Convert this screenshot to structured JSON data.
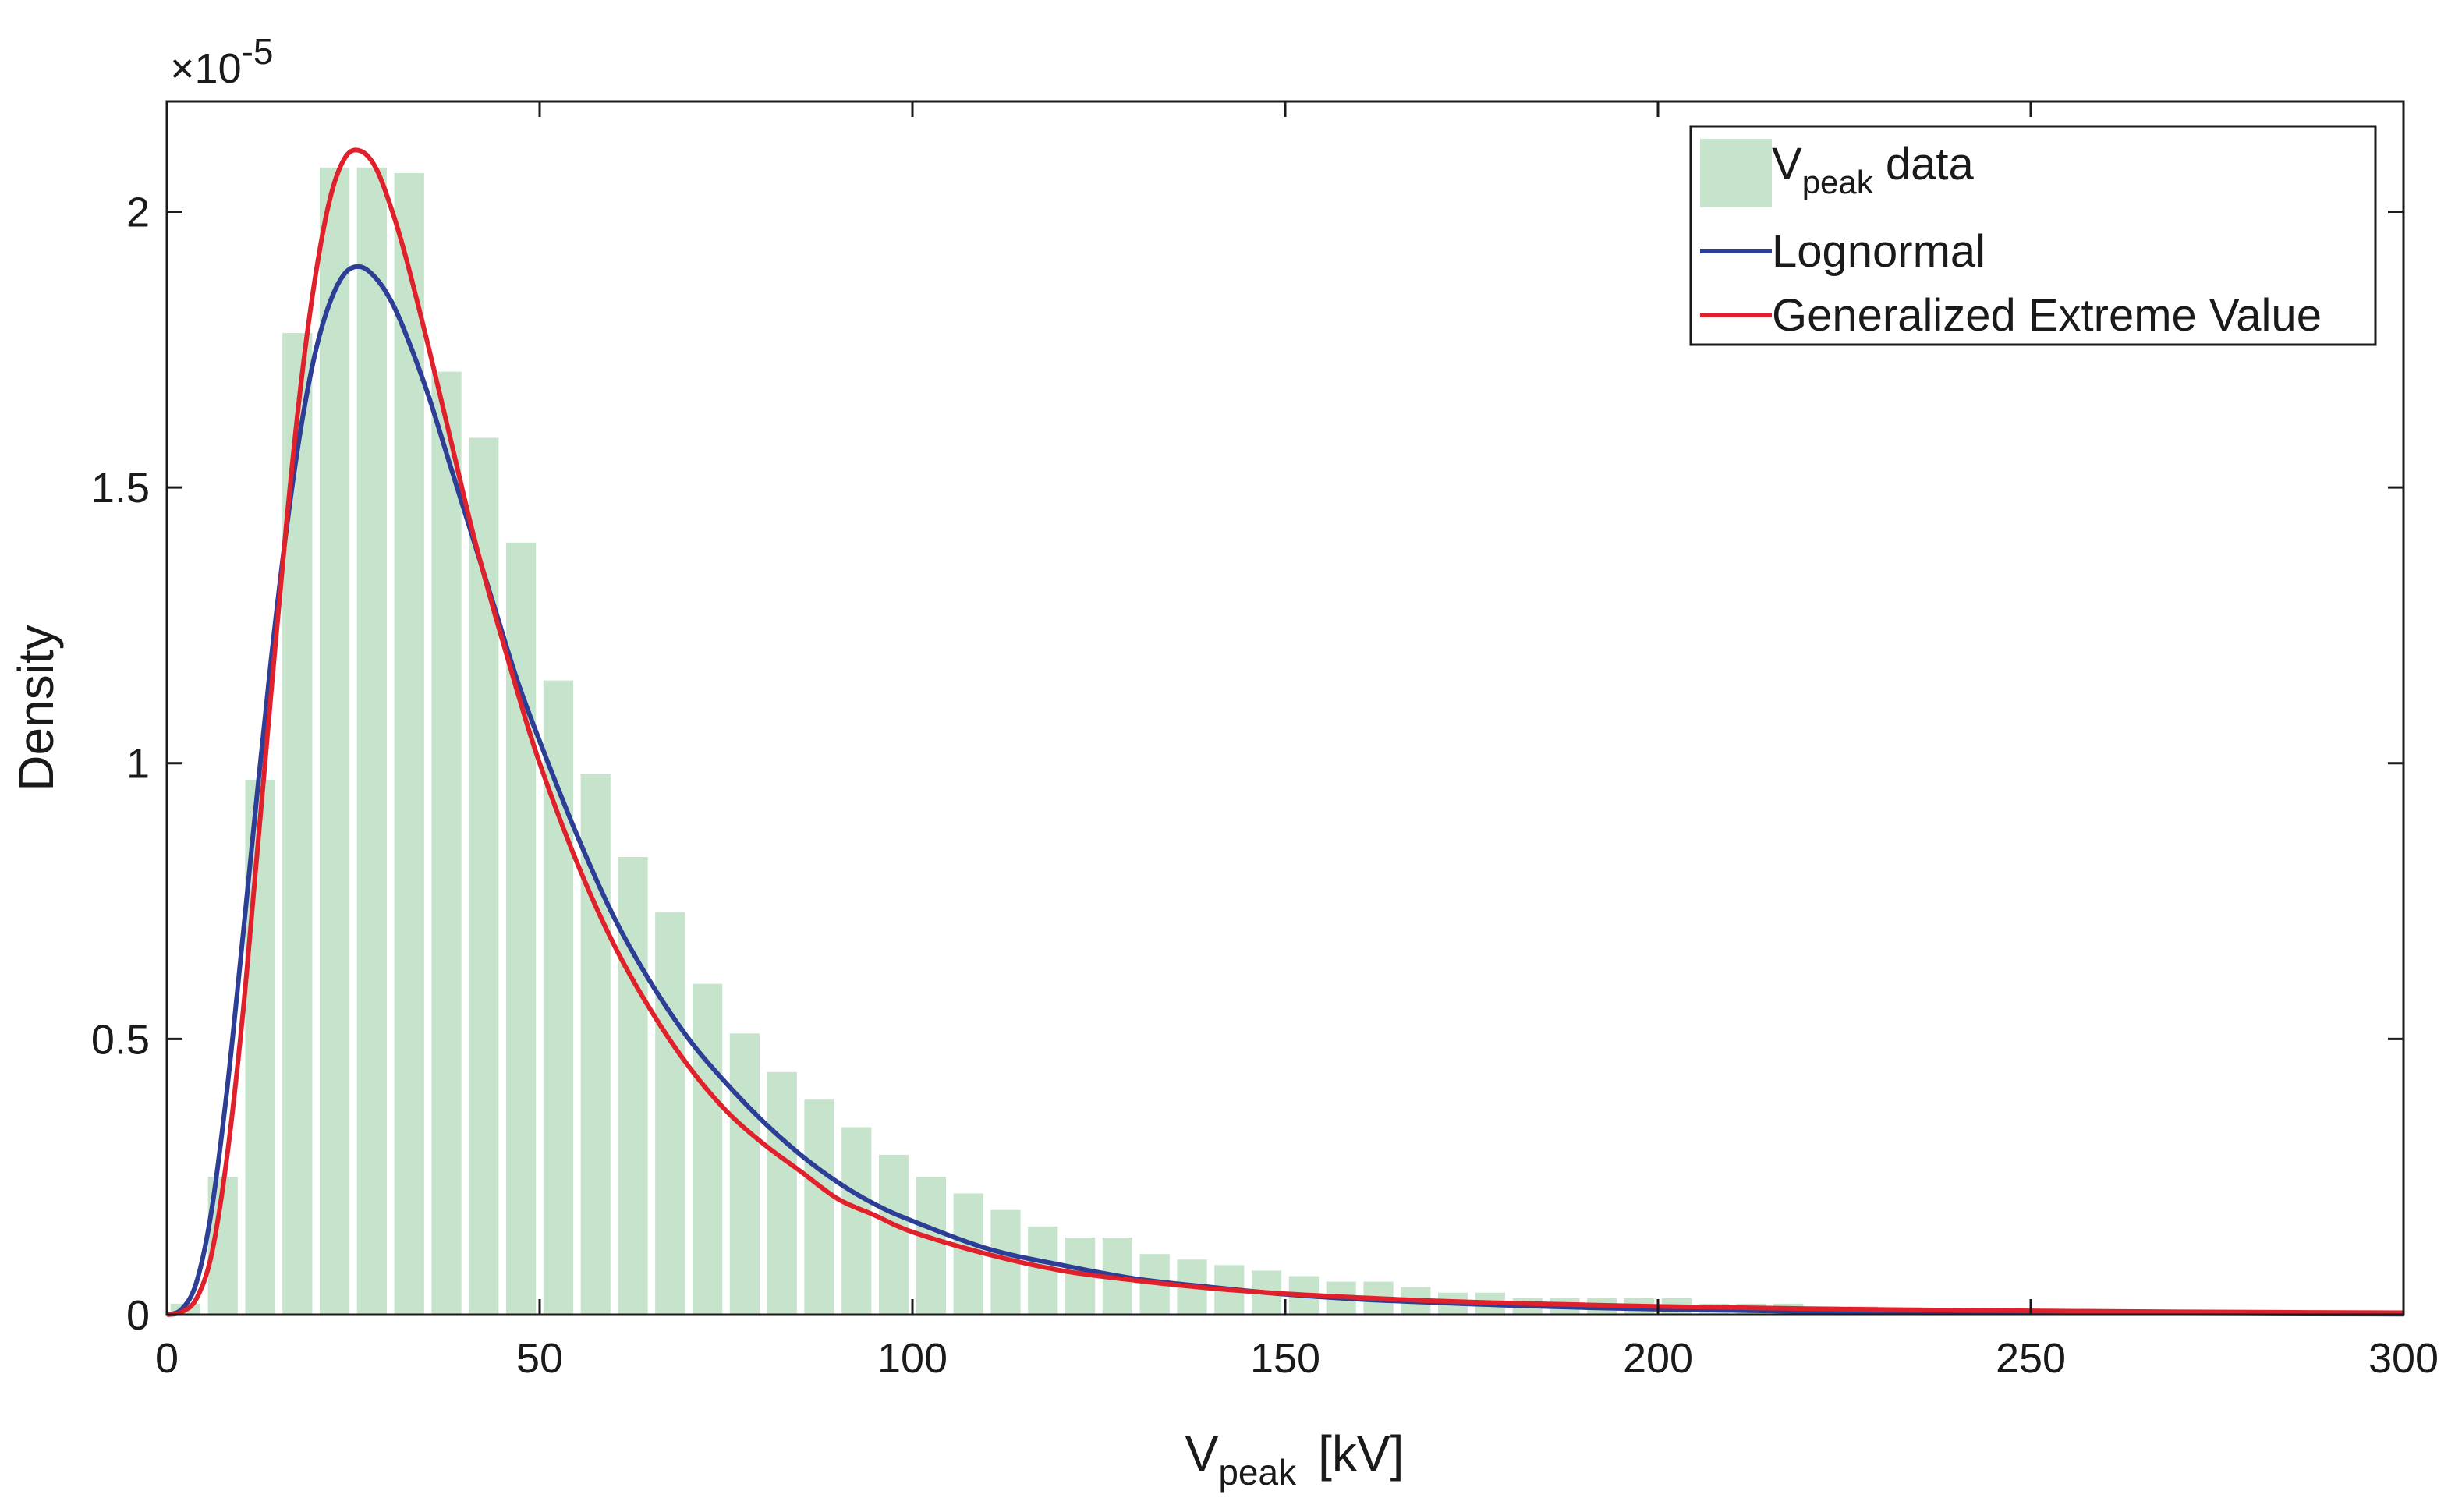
{
  "chart_data": {
    "type": "bar",
    "title": "",
    "xlabel": {
      "main": "V",
      "sub": "peak",
      "unit": "[kV]"
    },
    "ylabel": "Density",
    "y_exponent": {
      "base": "×10",
      "power": "-5"
    },
    "xlim": [
      0,
      300
    ],
    "ylim": [
      0,
      2.2
    ],
    "xticks": [
      0,
      50,
      100,
      150,
      200,
      250,
      300
    ],
    "xtick_labels": [
      "0",
      "50",
      "100",
      "150",
      "200",
      "250",
      "300"
    ],
    "yticks": [
      0,
      0.5,
      1,
      1.5,
      2
    ],
    "ytick_labels": [
      "0",
      "0.5",
      "1",
      "1.5",
      "2"
    ],
    "grid": false,
    "histogram": {
      "name": "V_peak data",
      "color": "#c6e4cb",
      "bin_width": 5,
      "bin_starts": [
        0,
        5,
        10,
        15,
        20,
        25,
        30,
        35,
        40,
        45,
        50,
        55,
        60,
        65,
        70,
        75,
        80,
        85,
        90,
        95,
        100,
        105,
        110,
        115,
        120,
        125,
        130,
        135,
        140,
        145,
        150,
        155,
        160,
        165,
        170,
        175,
        180,
        185,
        190,
        195,
        200,
        205,
        210,
        215,
        220,
        225,
        230,
        235,
        240,
        245,
        250,
        255,
        260,
        265,
        270,
        275,
        280,
        285,
        290,
        295
      ],
      "values": [
        0.02,
        0.25,
        0.97,
        1.78,
        2.08,
        2.08,
        2.07,
        1.71,
        1.59,
        1.4,
        1.15,
        0.98,
        0.83,
        0.73,
        0.6,
        0.51,
        0.44,
        0.39,
        0.34,
        0.29,
        0.25,
        0.22,
        0.19,
        0.16,
        0.14,
        0.14,
        0.11,
        0.1,
        0.09,
        0.08,
        0.07,
        0.06,
        0.06,
        0.05,
        0.04,
        0.04,
        0.03,
        0.03,
        0.03,
        0.03,
        0.03,
        0.02,
        0.02,
        0.02,
        0.015,
        0.015,
        0.01,
        0.01,
        0.01,
        0.01,
        0.01,
        0.01,
        0.008,
        0.008,
        0.008,
        0.006,
        0.006,
        0.005,
        0.005,
        0.005
      ]
    },
    "series": [
      {
        "name": "Lognormal",
        "color": "#2c3e96",
        "x": [
          0,
          2,
          4,
          6,
          8,
          10,
          12,
          14,
          16,
          18,
          20,
          22,
          24,
          26,
          28,
          30,
          32,
          35,
          38,
          41,
          44,
          47,
          50,
          55,
          60,
          65,
          70,
          75,
          80,
          85,
          90,
          95,
          100,
          110,
          120,
          130,
          140,
          150,
          160,
          170,
          180,
          190,
          200,
          220,
          240,
          260,
          280,
          300
        ],
        "y": [
          0,
          0.01,
          0.06,
          0.19,
          0.4,
          0.66,
          0.93,
          1.19,
          1.42,
          1.61,
          1.75,
          1.84,
          1.89,
          1.9,
          1.88,
          1.84,
          1.78,
          1.67,
          1.54,
          1.41,
          1.28,
          1.15,
          1.04,
          0.87,
          0.72,
          0.6,
          0.5,
          0.42,
          0.35,
          0.29,
          0.24,
          0.2,
          0.17,
          0.12,
          0.09,
          0.065,
          0.05,
          0.037,
          0.028,
          0.022,
          0.017,
          0.013,
          0.01,
          0.006,
          0.004,
          0.0025,
          0.0017,
          0.0012
        ]
      },
      {
        "name": "Generalized Extreme Value",
        "color": "#e0202b",
        "x": [
          0,
          2,
          4,
          6,
          8,
          10,
          12,
          14,
          16,
          18,
          20,
          22,
          24,
          26,
          28,
          30,
          32,
          35,
          38,
          41,
          44,
          47,
          50,
          55,
          60,
          65,
          70,
          75,
          80,
          85,
          90,
          95,
          100,
          110,
          120,
          130,
          140,
          150,
          160,
          170,
          180,
          190,
          200,
          220,
          240,
          260,
          280,
          300
        ],
        "y": [
          0,
          0.005,
          0.03,
          0.11,
          0.28,
          0.52,
          0.82,
          1.13,
          1.43,
          1.69,
          1.89,
          2.03,
          2.1,
          2.11,
          2.08,
          2.01,
          1.92,
          1.76,
          1.59,
          1.42,
          1.27,
          1.13,
          1.0,
          0.82,
          0.67,
          0.55,
          0.45,
          0.37,
          0.31,
          0.26,
          0.21,
          0.18,
          0.15,
          0.11,
          0.08,
          0.062,
          0.048,
          0.038,
          0.031,
          0.025,
          0.021,
          0.018,
          0.015,
          0.011,
          0.008,
          0.006,
          0.0045,
          0.0035
        ]
      }
    ],
    "legend": {
      "placement": "top-right",
      "entries": [
        {
          "main": "V",
          "sub": "peak",
          "rest": " data"
        },
        {
          "main": "Lognormal"
        },
        {
          "main": "Generalized Extreme Value"
        }
      ]
    }
  }
}
